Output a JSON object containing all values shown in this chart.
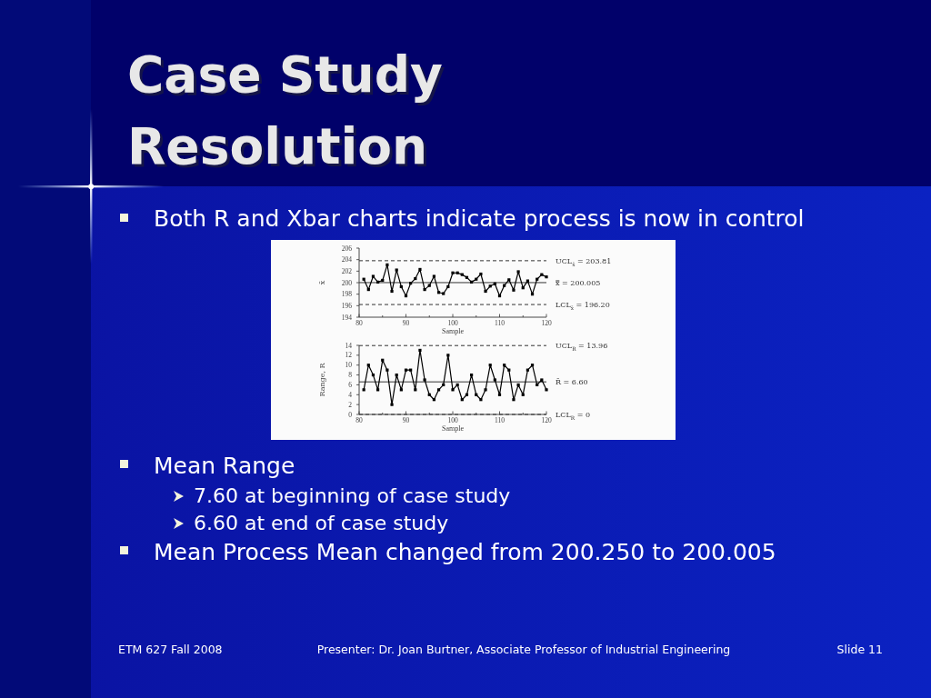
{
  "chart_data": [
    {
      "type": "line",
      "title": "Case Study Resolution",
      "subtitle": "Both R and Xbar charts indicate process is now in control",
      "x": [
        81,
        82,
        83,
        84,
        85,
        86,
        87,
        88,
        89,
        90,
        91,
        92,
        93,
        94,
        95,
        96,
        97,
        98,
        99,
        100,
        101,
        102,
        103,
        104,
        105,
        106,
        107,
        108,
        109,
        110,
        111,
        112,
        113,
        114,
        115,
        116,
        117,
        118,
        119,
        120
      ],
      "series": [
        {
          "color": "#000000",
          "values": [
            200.6,
            198.8,
            201.1,
            200.1,
            200.4,
            203.1,
            198.5,
            202.2,
            199.3,
            197.7,
            199.9,
            200.7,
            202.3,
            198.8,
            199.5,
            201.1,
            198.3,
            198.1,
            199.3,
            201.7,
            201.7,
            201.4,
            200.9,
            200.1,
            200.6,
            201.5,
            198.5,
            199.4,
            199.8,
            197.7,
            199.5,
            200.5,
            198.7,
            201.9,
            199.1,
            200.3,
            198.0,
            200.6,
            201.4,
            201.0
          ]
        }
      ],
      "xlim": [
        80,
        120
      ],
      "xticks": [
        80,
        {
          "value": 85,
          "label": null
        },
        90,
        {
          "value": 95,
          "label": null
        },
        100,
        {
          "value": 105,
          "label": null
        },
        110,
        {
          "value": 115,
          "label": null
        },
        120
      ],
      "ylim": [
        194,
        206
      ],
      "yticks": [
        194,
        196,
        198,
        200,
        202,
        204,
        206
      ],
      "xlabel": "Sample",
      "ylabel": "x̄",
      "marker": "square",
      "ref_lines": [
        {
          "axis": "y",
          "value": 203.81,
          "label": "UCL$_{x̄}$ = 203.81",
          "line_style": "dashed"
        },
        {
          "axis": "y",
          "value": 200.005,
          "label": "x̿ = 200.005",
          "line_style": "solid"
        },
        {
          "axis": "y",
          "value": 196.2,
          "label": "LCL$_{x̄}$ = 196.20",
          "line_style": "dashed"
        }
      ]
    },
    {
      "type": "line",
      "x": [
        81,
        82,
        83,
        84,
        85,
        86,
        87,
        88,
        89,
        90,
        91,
        92,
        93,
        94,
        95,
        96,
        97,
        98,
        99,
        100,
        101,
        102,
        103,
        104,
        105,
        106,
        107,
        108,
        109,
        110,
        111,
        112,
        113,
        114,
        115,
        116,
        117,
        118,
        119,
        120
      ],
      "series": [
        {
          "color": "#000000",
          "values": [
            5,
            10,
            8,
            5,
            11,
            9,
            2,
            8,
            5,
            9,
            9,
            5,
            13,
            7,
            4,
            3,
            5,
            6,
            12,
            5,
            6,
            3,
            4,
            8,
            4,
            3,
            5,
            10,
            7,
            4,
            10,
            9,
            3,
            6,
            4,
            9,
            10,
            6,
            7,
            5
          ]
        }
      ],
      "xlim": [
        80,
        120
      ],
      "xticks": [
        80,
        {
          "value": 85,
          "label": null
        },
        90,
        {
          "value": 95,
          "label": null
        },
        100,
        {
          "value": 105,
          "label": null
        },
        110,
        {
          "value": 115,
          "label": null
        },
        120
      ],
      "ylim": [
        0,
        14
      ],
      "yticks": [
        0,
        2,
        4,
        6,
        8,
        10,
        12,
        14
      ],
      "xlabel": "Sample",
      "ylabel": "Range, R",
      "marker": "square",
      "ref_lines": [
        {
          "axis": "y",
          "value": 13.96,
          "label": "UCL$_{R}$ = 13.96",
          "line_style": "dashed"
        },
        {
          "axis": "y",
          "value": 6.6,
          "label": "R̄ = 6.60",
          "line_style": "solid"
        },
        {
          "axis": "y",
          "value": 0,
          "label": "LCL$_{R}$ = 0",
          "line_style": "dashed"
        }
      ],
      "annotations": [
        "Mean Range",
        "7.60 at beginning of case study",
        "6.60 at end of case study",
        "Mean Process Mean changed from 200.250 to 200.005",
        "ETM 627 Fall 2008",
        "Presenter: Dr. Joan Burtner, Associate Professor of Industrial Engineering",
        "Slide 11"
      ]
    }
  ]
}
